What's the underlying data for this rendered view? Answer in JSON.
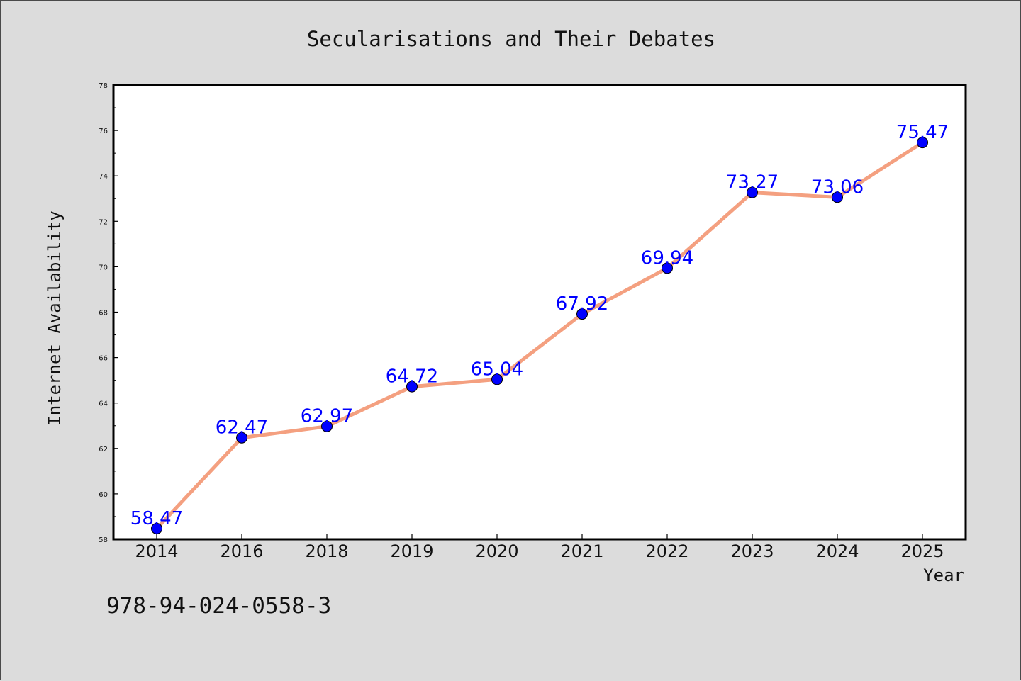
{
  "chart_data": {
    "type": "line",
    "title": "Secularisations and Their Debates",
    "xlabel": "Year",
    "ylabel": "Internet Availability",
    "categories": [
      "2014",
      "2016",
      "2018",
      "2019",
      "2020",
      "2021",
      "2022",
      "2023",
      "2024",
      "2025"
    ],
    "values": [
      58.47,
      62.47,
      62.97,
      64.72,
      65.04,
      67.92,
      69.94,
      73.27,
      73.06,
      75.47
    ],
    "data_labels": [
      "58.47",
      "62.47",
      "62.97",
      "64.72",
      "65.04",
      "67.92",
      "69.94",
      "73.27",
      "73.06",
      "75.47"
    ],
    "ylim": [
      58,
      78
    ],
    "yticks": [
      "58",
      "60",
      "62",
      "64",
      "66",
      "68",
      "70",
      "72",
      "74",
      "76",
      "78"
    ],
    "grid": false,
    "line_color": "#f4a080",
    "marker_color": "#0000ff",
    "label_color": "#0000ff"
  },
  "footer": {
    "code": "978-94-024-0558-3"
  }
}
